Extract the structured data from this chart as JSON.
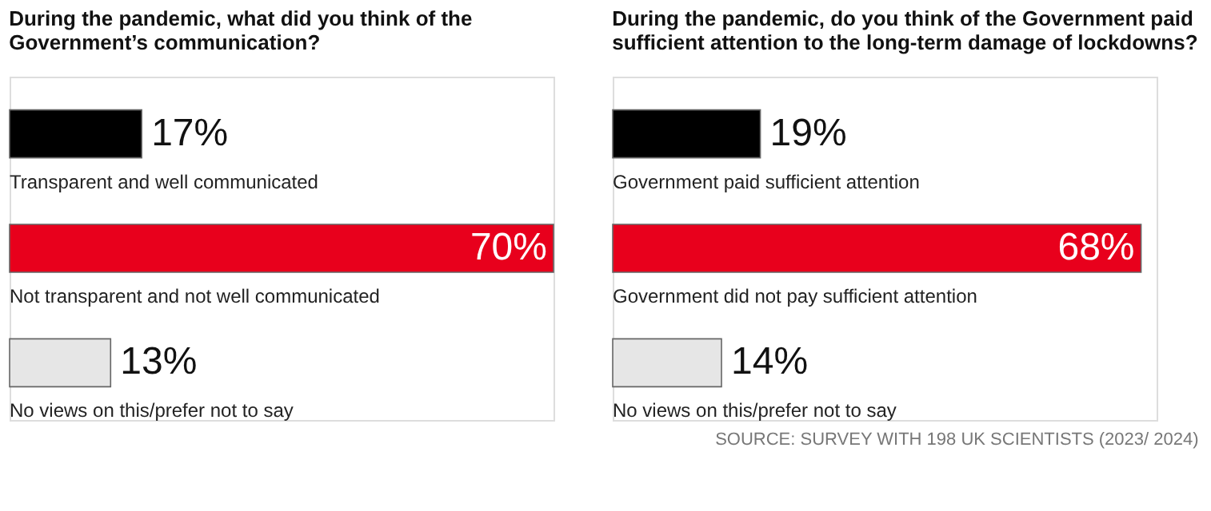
{
  "chart_data": [
    {
      "type": "bar",
      "orientation": "horizontal",
      "title": "During the pandemic, what did you think of the Government’s communication?",
      "categories": [
        "Transparent and well communicated",
        "Not transparent and not well communicated",
        "No views on this/prefer not to say"
      ],
      "values": [
        17,
        70,
        13
      ],
      "colors": [
        "#000000",
        "#e8001c",
        "#e6e6e6"
      ],
      "value_labels": [
        "17%",
        "70%",
        "13%"
      ],
      "legend": false,
      "tick_labels": false
    },
    {
      "type": "bar",
      "orientation": "horizontal",
      "title": "During the pandemic, do you think of the Government paid sufficient attention to the long-term damage of lockdowns?",
      "categories": [
        "Government paid sufficient attention",
        "Government did not pay sufficient attention",
        "No views on this/prefer not to say"
      ],
      "values": [
        19,
        68,
        14
      ],
      "colors": [
        "#000000",
        "#e8001c",
        "#e6e6e6"
      ],
      "value_labels": [
        "19%",
        "68%",
        "14%"
      ],
      "legend": false,
      "tick_labels": false,
      "annotations": [
        "SOURCE: SURVEY WITH 198 UK SCIENTISTS (2023/ 2024)"
      ]
    }
  ]
}
